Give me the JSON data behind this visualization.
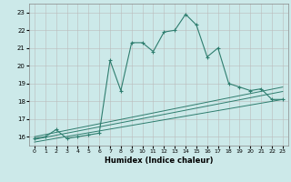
{
  "xlabel": "Humidex (Indice chaleur)",
  "ylabel": "",
  "background_color": "#cce9e9",
  "grid_color": "#bbbbbb",
  "line_color": "#2e7d6e",
  "xlim": [
    -0.5,
    23.5
  ],
  "ylim": [
    15.5,
    23.5
  ],
  "yticks": [
    16,
    17,
    18,
    19,
    20,
    21,
    22,
    23
  ],
  "xticks": [
    0,
    1,
    2,
    3,
    4,
    5,
    6,
    7,
    8,
    9,
    10,
    11,
    12,
    13,
    14,
    15,
    16,
    17,
    18,
    19,
    20,
    21,
    22,
    23
  ],
  "series": {
    "main": {
      "x": [
        0,
        1,
        2,
        3,
        4,
        5,
        6,
        7,
        8,
        9,
        10,
        11,
        12,
        13,
        14,
        15,
        16,
        17,
        18,
        19,
        20,
        21,
        22,
        23
      ],
      "y": [
        15.9,
        16.0,
        16.4,
        15.9,
        16.0,
        16.1,
        16.2,
        20.3,
        18.6,
        21.3,
        21.3,
        20.8,
        21.9,
        22.0,
        22.9,
        22.3,
        20.5,
        21.0,
        19.0,
        18.8,
        18.6,
        18.7,
        18.1,
        18.1
      ]
    },
    "line1": {
      "x": [
        0,
        23
      ],
      "y": [
        16.0,
        18.8
      ]
    },
    "line2": {
      "x": [
        0,
        23
      ],
      "y": [
        15.85,
        18.55
      ]
    },
    "line3": {
      "x": [
        0,
        23
      ],
      "y": [
        15.7,
        18.1
      ]
    }
  }
}
